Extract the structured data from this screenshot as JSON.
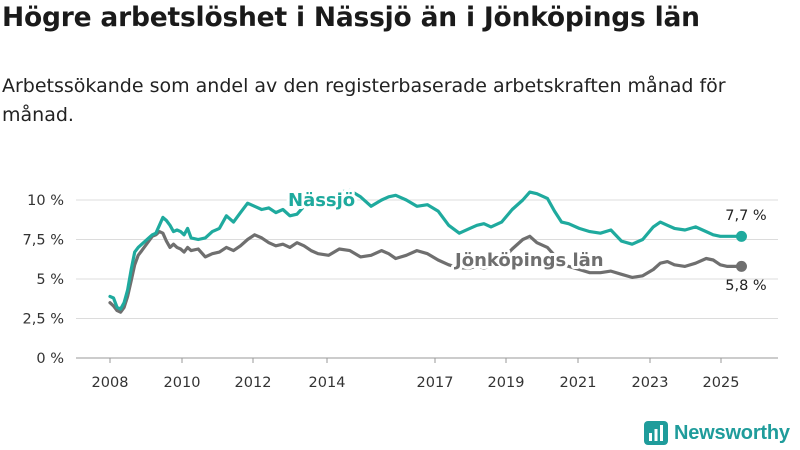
{
  "header": {
    "title": "Högre arbetslöshet i Nässjö än i Jönköpings län",
    "subtitle": "Arbetssökande som andel av den registerbaserade arbetskraften månad för månad."
  },
  "brand": {
    "name": "Newsworthy"
  },
  "colors": {
    "nassjo": "#1faa9e",
    "lan": "#6f6f6f",
    "grid": "#dcdcdc",
    "axis": "#9a9a9a"
  },
  "chart_data": {
    "type": "line",
    "title": "Högre arbetslöshet i Nässjö än i Jönköpings län",
    "xlabel": "",
    "ylabel": "",
    "xlim": [
      2008.0,
      2026.0
    ],
    "ylim": [
      0,
      10
    ],
    "x_ticks": [
      2008,
      2010,
      2012,
      2014,
      2017,
      2019,
      2021,
      2023,
      2025
    ],
    "x_tick_labels": [
      "2008",
      "2010",
      "2012",
      "2014",
      "2017",
      "2019",
      "2021",
      "2023",
      "2025"
    ],
    "y_ticks": [
      0,
      2.5,
      5,
      7.5,
      10
    ],
    "y_tick_labels": [
      "0 %",
      "2,5 %",
      "5 %",
      "7,5 %",
      "10 %"
    ],
    "series": [
      {
        "name": "Nässjö",
        "label": "Nässjö",
        "end_label": "7,7 %",
        "x": [
          2008.0,
          2008.1,
          2008.2,
          2008.3,
          2008.4,
          2008.5,
          2008.6,
          2008.7,
          2008.8,
          2008.9,
          2009.0,
          2009.1,
          2009.2,
          2009.3,
          2009.4,
          2009.5,
          2009.6,
          2009.7,
          2009.8,
          2009.9,
          2010.0,
          2010.1,
          2010.2,
          2010.3,
          2010.5,
          2010.7,
          2010.9,
          2011.1,
          2011.3,
          2011.5,
          2011.7,
          2011.9,
          2012.1,
          2012.3,
          2012.5,
          2012.7,
          2012.9,
          2013.1,
          2013.3,
          2013.5,
          2013.7,
          2013.9,
          2014.2,
          2014.5,
          2014.8,
          2015.1,
          2015.4,
          2015.7,
          2015.9,
          2016.1,
          2016.4,
          2016.7,
          2017.0,
          2017.3,
          2017.6,
          2017.9,
          2018.2,
          2018.4,
          2018.6,
          2018.8,
          2019.1,
          2019.4,
          2019.7,
          2019.9,
          2020.1,
          2020.4,
          2020.6,
          2020.8,
          2021.0,
          2021.3,
          2021.6,
          2021.9,
          2022.2,
          2022.5,
          2022.8,
          2023.1,
          2023.4,
          2023.6,
          2023.8,
          2024.0,
          2024.3,
          2024.6,
          2024.9,
          2025.1,
          2025.3,
          2025.5,
          2025.7,
          2025.9
        ],
        "values": [
          3.9,
          3.8,
          3.2,
          3.1,
          3.5,
          4.3,
          5.6,
          6.7,
          7.0,
          7.2,
          7.4,
          7.6,
          7.8,
          7.9,
          8.4,
          8.9,
          8.7,
          8.4,
          8.0,
          8.1,
          8.0,
          7.8,
          8.2,
          7.6,
          7.5,
          7.6,
          8.0,
          8.2,
          9.0,
          8.6,
          9.2,
          9.8,
          9.6,
          9.4,
          9.5,
          9.2,
          9.4,
          9.0,
          9.1,
          9.6,
          9.9,
          9.9,
          9.7,
          10.5,
          10.6,
          10.2,
          9.6,
          10.0,
          10.2,
          10.3,
          10.0,
          9.6,
          9.7,
          9.3,
          8.4,
          7.9,
          8.2,
          8.4,
          8.5,
          8.3,
          8.6,
          9.4,
          10.0,
          10.5,
          10.4,
          10.1,
          9.3,
          8.6,
          8.5,
          8.2,
          8.0,
          7.9,
          8.1,
          7.4,
          7.2,
          7.5,
          8.3,
          8.6,
          8.4,
          8.2,
          8.1,
          8.3,
          8.0,
          7.8,
          7.7,
          7.7,
          7.7,
          7.7
        ]
      },
      {
        "name": "Jönköpings län",
        "label": "Jönköpings län",
        "end_label": "5,8 %",
        "x": [
          2008.0,
          2008.1,
          2008.2,
          2008.3,
          2008.4,
          2008.5,
          2008.6,
          2008.7,
          2008.8,
          2008.9,
          2009.0,
          2009.1,
          2009.2,
          2009.3,
          2009.4,
          2009.5,
          2009.6,
          2009.7,
          2009.8,
          2009.9,
          2010.0,
          2010.1,
          2010.2,
          2010.3,
          2010.5,
          2010.7,
          2010.9,
          2011.1,
          2011.3,
          2011.5,
          2011.7,
          2011.9,
          2012.1,
          2012.3,
          2012.5,
          2012.7,
          2012.9,
          2013.1,
          2013.3,
          2013.5,
          2013.7,
          2013.9,
          2014.2,
          2014.5,
          2014.8,
          2015.1,
          2015.4,
          2015.7,
          2015.9,
          2016.1,
          2016.4,
          2016.7,
          2017.0,
          2017.3,
          2017.6,
          2017.9,
          2018.2,
          2018.4,
          2018.6,
          2018.8,
          2019.1,
          2019.4,
          2019.7,
          2019.9,
          2020.1,
          2020.4,
          2020.6,
          2020.8,
          2021.0,
          2021.3,
          2021.6,
          2021.9,
          2022.2,
          2022.5,
          2022.8,
          2023.1,
          2023.4,
          2023.6,
          2023.8,
          2024.0,
          2024.3,
          2024.6,
          2024.9,
          2025.1,
          2025.3,
          2025.5,
          2025.7,
          2025.9
        ],
        "values": [
          3.5,
          3.3,
          3.0,
          2.9,
          3.2,
          3.9,
          4.9,
          5.9,
          6.5,
          6.8,
          7.1,
          7.4,
          7.7,
          7.8,
          8.0,
          7.9,
          7.4,
          7.0,
          7.2,
          7.0,
          6.9,
          6.7,
          7.0,
          6.8,
          6.9,
          6.4,
          6.6,
          6.7,
          7.0,
          6.8,
          7.1,
          7.5,
          7.8,
          7.6,
          7.3,
          7.1,
          7.2,
          7.0,
          7.3,
          7.1,
          6.8,
          6.6,
          6.5,
          6.9,
          6.8,
          6.4,
          6.5,
          6.8,
          6.6,
          6.3,
          6.5,
          6.8,
          6.6,
          6.2,
          5.9,
          5.7,
          5.7,
          5.8,
          5.7,
          5.8,
          6.2,
          6.9,
          7.5,
          7.7,
          7.3,
          7.0,
          6.5,
          6.0,
          5.8,
          5.6,
          5.4,
          5.4,
          5.5,
          5.3,
          5.1,
          5.2,
          5.6,
          6.0,
          6.1,
          5.9,
          5.8,
          6.0,
          6.3,
          6.2,
          5.9,
          5.8,
          5.8,
          5.8
        ]
      }
    ]
  }
}
